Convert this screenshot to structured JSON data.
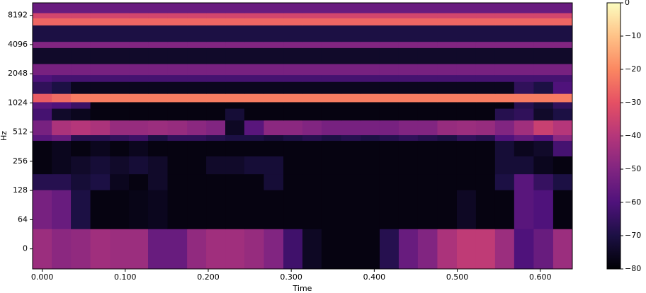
{
  "chart_data": {
    "type": "heatmap",
    "x_label": "Time",
    "y_label": "Hz",
    "yscale": "symlog",
    "linthresh": 64,
    "x": [
      0,
      0.023,
      0.046,
      0.07,
      0.093,
      0.116,
      0.139,
      0.163,
      0.186,
      0.209,
      0.232,
      0.255,
      0.279,
      0.302,
      0.325,
      0.348,
      0.372,
      0.395,
      0.418,
      0.441,
      0.464,
      0.488,
      0.511,
      0.534,
      0.557,
      0.58,
      0.604,
      0.627
    ],
    "y_edges": [
      -44,
      44,
      130,
      190,
      290,
      420,
      480,
      680,
      900,
      1050,
      1280,
      1700,
      2000,
      2600,
      3800,
      4400,
      6500,
      7700,
      8700,
      11025
    ],
    "z": [
      [
        -45,
        -48,
        -47,
        -44,
        -45,
        -45,
        -55,
        -55,
        -47,
        -44,
        -44,
        -46,
        -50,
        -63,
        -75,
        -78,
        -78,
        -78,
        -68,
        -55,
        -50,
        -42,
        -38,
        -38,
        -45,
        -60,
        -55,
        -45
      ],
      [
        -52,
        -55,
        -70,
        -78,
        -78,
        -77,
        -76,
        -78,
        -78,
        -78,
        -78,
        -78,
        -78,
        -78,
        -78,
        -78,
        -78,
        -78,
        -78,
        -78,
        -78,
        -78,
        -75,
        -78,
        -78,
        -58,
        -60,
        -78
      ],
      [
        -68,
        -68,
        -72,
        -70,
        -76,
        -78,
        -74,
        -78,
        -78,
        -78,
        -78,
        -78,
        -72,
        -78,
        -78,
        -78,
        -78,
        -78,
        -78,
        -78,
        -78,
        -78,
        -78,
        -78,
        -70,
        -58,
        -65,
        -70
      ],
      [
        -78,
        -76,
        -74,
        -72,
        -74,
        -72,
        -74,
        -78,
        -78,
        -74,
        -74,
        -72,
        -72,
        -78,
        -78,
        -78,
        -78,
        -78,
        -78,
        -78,
        -78,
        -78,
        -78,
        -78,
        -72,
        -72,
        -76,
        -78
      ],
      [
        -78,
        -76,
        -78,
        -76,
        -78,
        -76,
        -78,
        -78,
        -78,
        -78,
        -78,
        -78,
        -78,
        -78,
        -78,
        -78,
        -78,
        -78,
        -78,
        -78,
        -78,
        -78,
        -78,
        -78,
        -72,
        -76,
        -74,
        -62
      ],
      [
        -58,
        -55,
        -68,
        -68,
        -66,
        -64,
        -70,
        -66,
        -66,
        -68,
        -70,
        -70,
        -72,
        -70,
        -68,
        -70,
        -68,
        -70,
        -68,
        -66,
        -68,
        -70,
        -66,
        -68,
        -60,
        -56,
        -60,
        -48
      ],
      [
        -52,
        -42,
        -40,
        -42,
        -46,
        -46,
        -45,
        -46,
        -48,
        -50,
        -75,
        -58,
        -48,
        -48,
        -50,
        -52,
        -52,
        -52,
        -52,
        -50,
        -50,
        -46,
        -45,
        -46,
        -50,
        -44,
        -36,
        -40
      ],
      [
        -62,
        -74,
        -76,
        -78,
        -78,
        -78,
        -78,
        -78,
        -78,
        -78,
        -72,
        -78,
        -78,
        -78,
        -78,
        -78,
        -78,
        -78,
        -78,
        -78,
        -78,
        -78,
        -78,
        -78,
        -68,
        -66,
        -74,
        -70
      ],
      [
        -58,
        -60,
        -64,
        -78,
        -78,
        -78,
        -78,
        -78,
        -78,
        -78,
        -78,
        -78,
        -78,
        -78,
        -78,
        -78,
        -78,
        -78,
        -78,
        -78,
        -78,
        -78,
        -78,
        -78,
        -78,
        -68,
        -72,
        -66
      ],
      [
        -28,
        -25,
        -22,
        -22,
        -22,
        -22,
        -22,
        -22,
        -22,
        -22,
        -22,
        -22,
        -22,
        -22,
        -22,
        -22,
        -22,
        -22,
        -22,
        -22,
        -22,
        -22,
        -22,
        -22,
        -22,
        -22,
        -22,
        -22
      ],
      [
        -66,
        -70,
        -76,
        -76,
        -76,
        -76,
        -76,
        -76,
        -76,
        -76,
        -76,
        -76,
        -76,
        -76,
        -76,
        -76,
        -76,
        -76,
        -76,
        -76,
        -76,
        -76,
        -76,
        -76,
        -76,
        -66,
        -70,
        -60
      ],
      [
        -60,
        -62,
        -62,
        -62,
        -62,
        -62,
        -62,
        -62,
        -62,
        -62,
        -62,
        -62,
        -62,
        -62,
        -62,
        -62,
        -62,
        -62,
        -62,
        -62,
        -62,
        -62,
        -62,
        -62,
        -62,
        -62,
        -62,
        -62
      ],
      [
        -52,
        -52,
        -52,
        -52,
        -52,
        -52,
        -52,
        -52,
        -52,
        -52,
        -52,
        -52,
        -52,
        -52,
        -52,
        -52,
        -52,
        -52,
        -52,
        -52,
        -52,
        -52,
        -52,
        -52,
        -52,
        -52,
        -52,
        -52
      ],
      [
        -74,
        -74,
        -74,
        -74,
        -74,
        -74,
        -74,
        -74,
        -74,
        -74,
        -74,
        -74,
        -74,
        -74,
        -74,
        -74,
        -74,
        -74,
        -74,
        -74,
        -74,
        -74,
        -74,
        -74,
        -74,
        -74,
        -74,
        -74
      ],
      [
        -50,
        -50,
        -50,
        -50,
        -50,
        -50,
        -50,
        -50,
        -50,
        -50,
        -50,
        -50,
        -50,
        -50,
        -50,
        -50,
        -50,
        -50,
        -50,
        -50,
        -50,
        -50,
        -50,
        -50,
        -50,
        -50,
        -50,
        -50
      ],
      [
        -70,
        -70,
        -70,
        -70,
        -70,
        -70,
        -70,
        -70,
        -70,
        -70,
        -70,
        -70,
        -70,
        -70,
        -70,
        -70,
        -70,
        -70,
        -70,
        -70,
        -70,
        -70,
        -70,
        -70,
        -70,
        -70,
        -70,
        -70
      ],
      [
        -26,
        -26,
        -26,
        -26,
        -26,
        -26,
        -26,
        -26,
        -26,
        -26,
        -26,
        -26,
        -26,
        -26,
        -26,
        -26,
        -26,
        -26,
        -26,
        -26,
        -26,
        -26,
        -26,
        -26,
        -26,
        -26,
        -26,
        -26
      ],
      [
        -34,
        -34,
        -34,
        -34,
        -34,
        -34,
        -34,
        -34,
        -34,
        -34,
        -34,
        -34,
        -34,
        -34,
        -34,
        -34,
        -34,
        -34,
        -34,
        -34,
        -34,
        -34,
        -34,
        -34,
        -34,
        -34,
        -34,
        -34
      ],
      [
        -55,
        -55,
        -55,
        -55,
        -55,
        -55,
        -55,
        -55,
        -55,
        -55,
        -55,
        -55,
        -55,
        -55,
        -55,
        -55,
        -55,
        -55,
        -55,
        -55,
        -55,
        -55,
        -55,
        -55,
        -55,
        -55,
        -55,
        -55
      ]
    ],
    "xlim": [
      -0.0116,
      0.6386
    ],
    "xticks": [
      {
        "value": 0,
        "label": "0.000"
      },
      {
        "value": 0.1,
        "label": "0.100"
      },
      {
        "value": 0.2,
        "label": "0.200"
      },
      {
        "value": 0.3,
        "label": "0.300"
      },
      {
        "value": 0.4,
        "label": "0.400"
      },
      {
        "value": 0.5,
        "label": "0.500"
      },
      {
        "value": 0.6,
        "label": "0.600"
      }
    ],
    "ylim": [
      -44,
      11025
    ],
    "yticks": [
      0,
      64,
      128,
      256,
      512,
      1024,
      2048,
      4096,
      8192
    ],
    "zlim": [
      -80,
      0
    ],
    "zticks": [
      0,
      {
        "value": -10,
        "label": "−10"
      },
      {
        "value": -20,
        "label": "−20"
      },
      {
        "value": -30,
        "label": "−30"
      },
      {
        "value": -40,
        "label": "−40"
      },
      {
        "value": -50,
        "label": "−50"
      },
      {
        "value": -60,
        "label": "−60"
      },
      {
        "value": -70,
        "label": "−70"
      },
      {
        "value": -80,
        "label": "−80"
      }
    ],
    "colormap": [
      "#000004",
      "#1c1044",
      "#4f127b",
      "#812581",
      "#b5367a",
      "#e55064",
      "#fb8761",
      "#fec287",
      "#fcfdbf"
    ]
  }
}
